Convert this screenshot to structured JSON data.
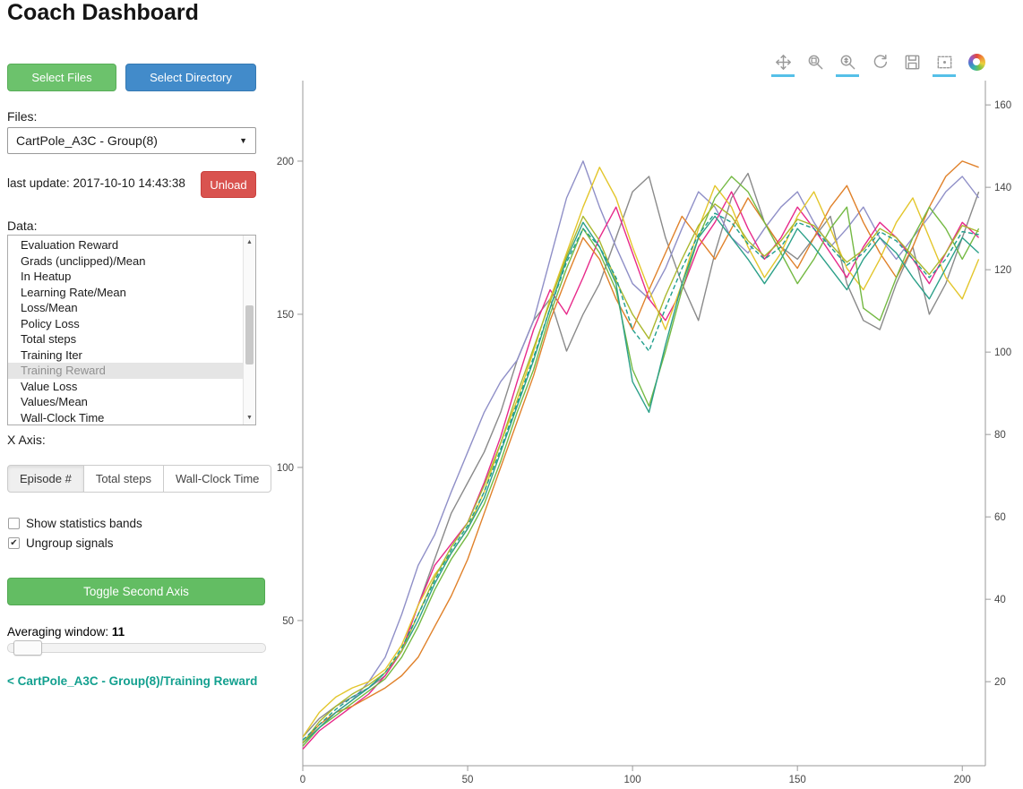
{
  "header": {
    "title": "Coach Dashboard"
  },
  "icons": {
    "dropdown_caret": "▼",
    "scroll_up": "▲",
    "scroll_down": "▼",
    "check": "✔"
  },
  "colors": {
    "green_button": "#6cc26c",
    "blue_button": "#428bca",
    "red_button": "#d9534f",
    "toggle_button_green": "#63bd63",
    "breadcrumb_teal": "#13a08f",
    "toolbar_active_underline": "#55c0e8"
  },
  "sidebar": {
    "select_files_label": "Select Files",
    "select_directory_label": "Select Directory",
    "files_label": "Files:",
    "files_selected": "CartPole_A3C - Group(8)",
    "last_update": "last update: 2017-10-10 14:43:38",
    "unload_label": "Unload",
    "data_label": "Data:",
    "data_items": [
      "Evaluation Reward",
      "Grads (unclipped)/Mean",
      "In Heatup",
      "Learning Rate/Mean",
      "Loss/Mean",
      "Policy Loss",
      "Total steps",
      "Training Iter",
      "Training Reward",
      "Value Loss",
      "Values/Mean",
      "Wall-Clock Time"
    ],
    "data_selected": "Training Reward",
    "x_axis_label": "X Axis:",
    "x_axis_options": [
      "Episode #",
      "Total steps",
      "Wall-Clock Time"
    ],
    "x_axis_selected": "Episode #",
    "checkbox_stats": {
      "label": "Show statistics bands",
      "checked": false
    },
    "checkbox_ungroup": {
      "label": "Ungroup signals",
      "checked": true
    },
    "toggle_second_axis_label": "Toggle Second Axis",
    "averaging_window_label": "Averaging window:",
    "averaging_window_value": "11",
    "breadcrumb": "< CartPole_A3C - Group(8)/Training Reward"
  },
  "plot_toolbar": {
    "tools": [
      {
        "name": "pan",
        "active": true
      },
      {
        "name": "box-zoom",
        "active": false
      },
      {
        "name": "wheel-zoom",
        "active": true
      },
      {
        "name": "reset",
        "active": false
      },
      {
        "name": "save",
        "active": false
      },
      {
        "name": "hover",
        "active": true
      },
      {
        "name": "bokeh-logo",
        "active": false
      }
    ]
  },
  "chart_data": {
    "type": "line",
    "title": "",
    "xlabel": "",
    "ylabel": "",
    "grid": false,
    "legend": "none",
    "x_start": 0,
    "x_step": 5,
    "x_range": [
      0,
      207
    ],
    "y_range": [
      2.6,
      226.3
    ],
    "y2_range": [
      -0.4,
      165.9
    ],
    "x_ticks": [
      0,
      50,
      100,
      150,
      200
    ],
    "y_ticks": [
      50,
      100,
      150,
      200
    ],
    "y2_ticks": [
      20,
      40,
      60,
      80,
      100,
      120,
      140,
      160
    ],
    "series": [
      {
        "name": "worker-gray",
        "color": "#8a8a8a",
        "dash": "solid",
        "y": [
          12,
          18,
          22,
          25,
          28,
          32,
          40,
          55,
          70,
          85,
          95,
          105,
          118,
          135,
          148,
          155,
          138,
          150,
          160,
          175,
          190,
          195,
          175,
          160,
          148,
          170,
          188,
          196,
          180,
          172,
          168,
          175,
          182,
          160,
          148,
          145,
          160,
          172,
          150,
          160,
          175,
          190
        ]
      },
      {
        "name": "worker-purple",
        "color": "#8f8fc7",
        "dash": "solid",
        "y": [
          10,
          15,
          20,
          24,
          30,
          38,
          52,
          68,
          78,
          92,
          105,
          118,
          128,
          135,
          148,
          168,
          188,
          200,
          185,
          172,
          160,
          155,
          165,
          178,
          190,
          185,
          175,
          170,
          178,
          185,
          190,
          180,
          172,
          178,
          185,
          175,
          168,
          175,
          182,
          190,
          195,
          188
        ]
      },
      {
        "name": "worker-magenta",
        "color": "#e7298a",
        "dash": "solid",
        "y": [
          8,
          14,
          18,
          22,
          26,
          32,
          40,
          55,
          68,
          75,
          82,
          95,
          110,
          128,
          145,
          158,
          150,
          162,
          175,
          185,
          170,
          155,
          148,
          158,
          172,
          180,
          190,
          178,
          168,
          175,
          185,
          178,
          170,
          162,
          172,
          180,
          175,
          168,
          160,
          170,
          180,
          175
        ]
      },
      {
        "name": "worker-orange",
        "color": "#e0812a",
        "dash": "solid",
        "y": [
          10,
          16,
          20,
          22,
          25,
          28,
          32,
          38,
          48,
          58,
          70,
          85,
          100,
          115,
          130,
          148,
          162,
          175,
          168,
          155,
          145,
          158,
          170,
          182,
          175,
          168,
          178,
          188,
          180,
          172,
          165,
          175,
          185,
          192,
          180,
          170,
          162,
          172,
          185,
          195,
          200,
          198
        ]
      },
      {
        "name": "worker-yellow",
        "color": "#e3c62c",
        "dash": "solid",
        "y": [
          12,
          20,
          25,
          28,
          30,
          34,
          42,
          55,
          65,
          72,
          80,
          92,
          108,
          122,
          138,
          155,
          170,
          185,
          198,
          188,
          172,
          158,
          145,
          160,
          178,
          192,
          185,
          172,
          162,
          170,
          182,
          190,
          178,
          165,
          158,
          168,
          180,
          188,
          175,
          162,
          155,
          168
        ]
      },
      {
        "name": "worker-green",
        "color": "#74b943",
        "dash": "solid",
        "y": [
          9,
          15,
          19,
          23,
          27,
          31,
          38,
          48,
          60,
          70,
          78,
          88,
          102,
          118,
          132,
          150,
          165,
          178,
          170,
          158,
          132,
          120,
          138,
          158,
          175,
          188,
          195,
          190,
          180,
          170,
          160,
          168,
          178,
          185,
          152,
          148,
          162,
          175,
          185,
          178,
          168,
          178
        ]
      },
      {
        "name": "worker-teal",
        "color": "#2ca089",
        "dash": "solid",
        "y": [
          10,
          15,
          20,
          24,
          28,
          33,
          40,
          50,
          62,
          72,
          80,
          90,
          105,
          120,
          135,
          152,
          168,
          180,
          172,
          160,
          128,
          118,
          140,
          160,
          175,
          182,
          175,
          168,
          160,
          168,
          178,
          172,
          165,
          158,
          168,
          175,
          170,
          162,
          155,
          165,
          175,
          170
        ]
      },
      {
        "name": "worker-olive",
        "color": "#aab82e",
        "dash": "solid",
        "y": [
          10,
          17,
          22,
          26,
          29,
          33,
          40,
          52,
          64,
          74,
          82,
          94,
          108,
          124,
          139,
          154,
          169,
          182,
          174,
          161,
          150,
          142,
          156,
          168,
          179,
          186,
          182,
          174,
          169,
          174,
          181,
          179,
          173,
          167,
          171,
          178,
          175,
          169,
          163,
          170,
          179,
          177
        ]
      },
      {
        "name": "mean-teal-dashed",
        "color": "#1f9e8c",
        "dash": "dashed",
        "y": [
          11,
          16,
          21,
          25,
          28,
          33,
          41,
          52,
          63,
          73,
          81,
          92,
          106,
          121,
          136,
          152,
          167,
          178,
          172,
          162,
          145,
          138,
          152,
          165,
          176,
          183,
          180,
          173,
          168,
          172,
          180,
          178,
          172,
          166,
          170,
          177,
          174,
          168,
          162,
          168,
          177,
          176
        ]
      }
    ]
  }
}
